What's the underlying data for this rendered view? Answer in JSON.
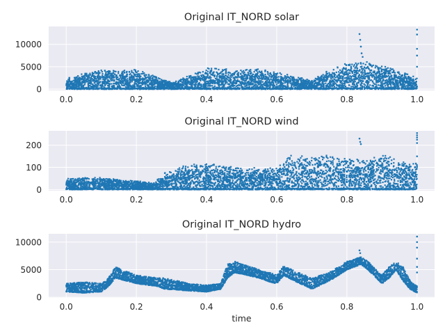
{
  "chart_data": [
    {
      "type": "scatter",
      "title": "Original IT_NORD solar",
      "xlabel": "",
      "ylabel": "",
      "xlim": [
        -0.05,
        1.05
      ],
      "ylim": [
        -300,
        14000
      ],
      "xticks": [
        "0.0",
        "0.2",
        "0.4",
        "0.6",
        "0.8",
        "1.0"
      ],
      "yticks": [
        "0",
        "5000",
        "10000"
      ],
      "color": "#1f77b4",
      "grid": true,
      "x": [
        0.0,
        0.05,
        0.1,
        0.15,
        0.2,
        0.25,
        0.3,
        0.35,
        0.4,
        0.45,
        0.5,
        0.55,
        0.6,
        0.65,
        0.7,
        0.75,
        0.8,
        0.85,
        0.9,
        0.95,
        1.0
      ],
      "y_max": [
        2500,
        3500,
        4500,
        4200,
        4500,
        3000,
        1600,
        3000,
        4800,
        4700,
        4300,
        4500,
        3800,
        3000,
        2000,
        4500,
        5800,
        6200,
        5600,
        4300,
        2800
      ],
      "outliers": [
        [
          0.836,
          12300
        ],
        [
          0.838,
          11000
        ],
        [
          0.84,
          9500
        ],
        [
          0.842,
          8000
        ],
        [
          0.845,
          7200
        ],
        [
          1.0,
          13300
        ],
        [
          1.0,
          12200
        ],
        [
          1.0,
          9000
        ],
        [
          1.0,
          7500
        ],
        [
          1.0,
          5000
        ]
      ]
    },
    {
      "type": "scatter",
      "title": "Original IT_NORD wind",
      "xlabel": "",
      "ylabel": "",
      "xlim": [
        -0.05,
        1.05
      ],
      "ylim": [
        -5,
        265
      ],
      "xticks": [
        "0.0",
        "0.2",
        "0.4",
        "0.6",
        "0.8",
        "1.0"
      ],
      "yticks": [
        "0",
        "100",
        "200"
      ],
      "color": "#1f77b4",
      "grid": true,
      "x": [
        0.0,
        0.05,
        0.1,
        0.15,
        0.2,
        0.25,
        0.28,
        0.3,
        0.35,
        0.4,
        0.45,
        0.5,
        0.55,
        0.6,
        0.63,
        0.65,
        0.7,
        0.75,
        0.8,
        0.85,
        0.9,
        0.95,
        1.0
      ],
      "y_max": [
        50,
        55,
        55,
        45,
        40,
        30,
        80,
        90,
        115,
        120,
        110,
        95,
        100,
        100,
        160,
        160,
        155,
        160,
        150,
        130,
        160,
        135,
        125
      ],
      "outliers": [
        [
          0.836,
          230
        ],
        [
          0.838,
          215
        ],
        [
          0.84,
          205
        ],
        [
          1.0,
          255
        ],
        [
          1.0,
          245
        ],
        [
          1.0,
          235
        ],
        [
          1.0,
          225
        ],
        [
          1.0,
          210
        ],
        [
          1.0,
          150
        ]
      ]
    },
    {
      "type": "scatter",
      "title": "Original IT_NORD hydro",
      "xlabel": "time",
      "ylabel": "",
      "xlim": [
        -0.05,
        1.05
      ],
      "ylim": [
        -100,
        11500
      ],
      "xticks": [
        "0.0",
        "0.2",
        "0.4",
        "0.6",
        "0.8",
        "1.0"
      ],
      "yticks": [
        "0",
        "5000",
        "10000"
      ],
      "color": "#1f77b4",
      "grid": true,
      "x": [
        0.0,
        0.05,
        0.1,
        0.12,
        0.14,
        0.2,
        0.26,
        0.28,
        0.35,
        0.4,
        0.44,
        0.46,
        0.48,
        0.55,
        0.58,
        0.6,
        0.62,
        0.65,
        0.7,
        0.75,
        0.8,
        0.84,
        0.86,
        0.9,
        0.92,
        0.94,
        0.96,
        0.98,
        1.0
      ],
      "y_low": [
        1000,
        800,
        1000,
        2000,
        3500,
        2500,
        2000,
        1500,
        1200,
        1000,
        1500,
        3500,
        4500,
        3500,
        2800,
        2500,
        4000,
        3000,
        1500,
        3000,
        5000,
        6000,
        5000,
        2500,
        3500,
        5000,
        3000,
        1500,
        800
      ],
      "y_high": [
        2500,
        2800,
        2500,
        3500,
        5500,
        4000,
        3500,
        3500,
        2500,
        2200,
        2500,
        6000,
        6500,
        5000,
        4500,
        4000,
        5800,
        4800,
        3500,
        4500,
        6500,
        7300,
        6500,
        4000,
        5500,
        6500,
        5500,
        3000,
        2000
      ],
      "outliers": [
        [
          0.836,
          8500
        ],
        [
          0.838,
          8000
        ],
        [
          1.0,
          11000
        ],
        [
          1.0,
          10000
        ],
        [
          1.0,
          9000
        ],
        [
          1.0,
          7000
        ],
        [
          1.0,
          5500
        ],
        [
          1.0,
          4500
        ]
      ]
    }
  ]
}
